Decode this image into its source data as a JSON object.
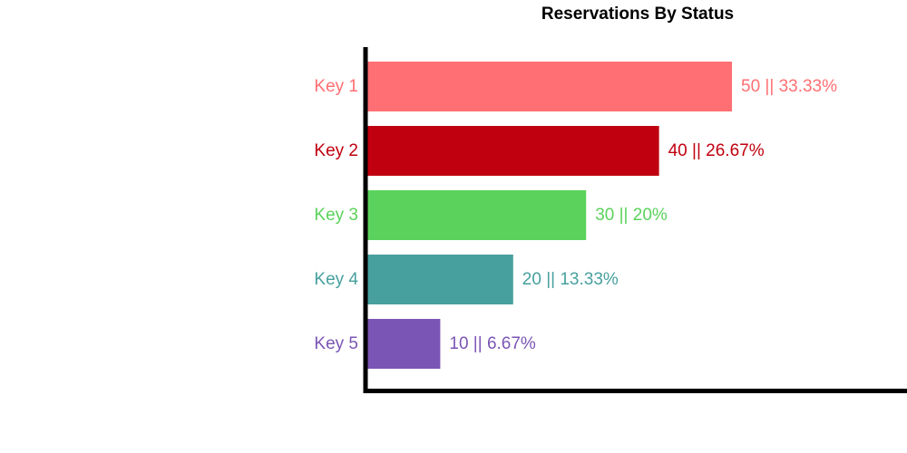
{
  "chart_data": {
    "type": "bar",
    "orientation": "horizontal",
    "title": "Reservations By Status",
    "xlabel": "",
    "ylabel": "",
    "xlim": [
      0,
      74
    ],
    "grid": false,
    "legend": "none",
    "categories": [
      "Key 1",
      "Key 2",
      "Key 3",
      "Key 4",
      "Key 5"
    ],
    "values": [
      50,
      40,
      30,
      20,
      10
    ],
    "data_labels": [
      "50 || 33.33%",
      "40 || 26.67%",
      "30 || 20%",
      "20 || 13.33%",
      "10 || 6.67%"
    ],
    "colors": [
      "#ff6f73",
      "#c0000f",
      "#5bd25b",
      "#47a09e",
      "#7b55b5"
    ]
  }
}
